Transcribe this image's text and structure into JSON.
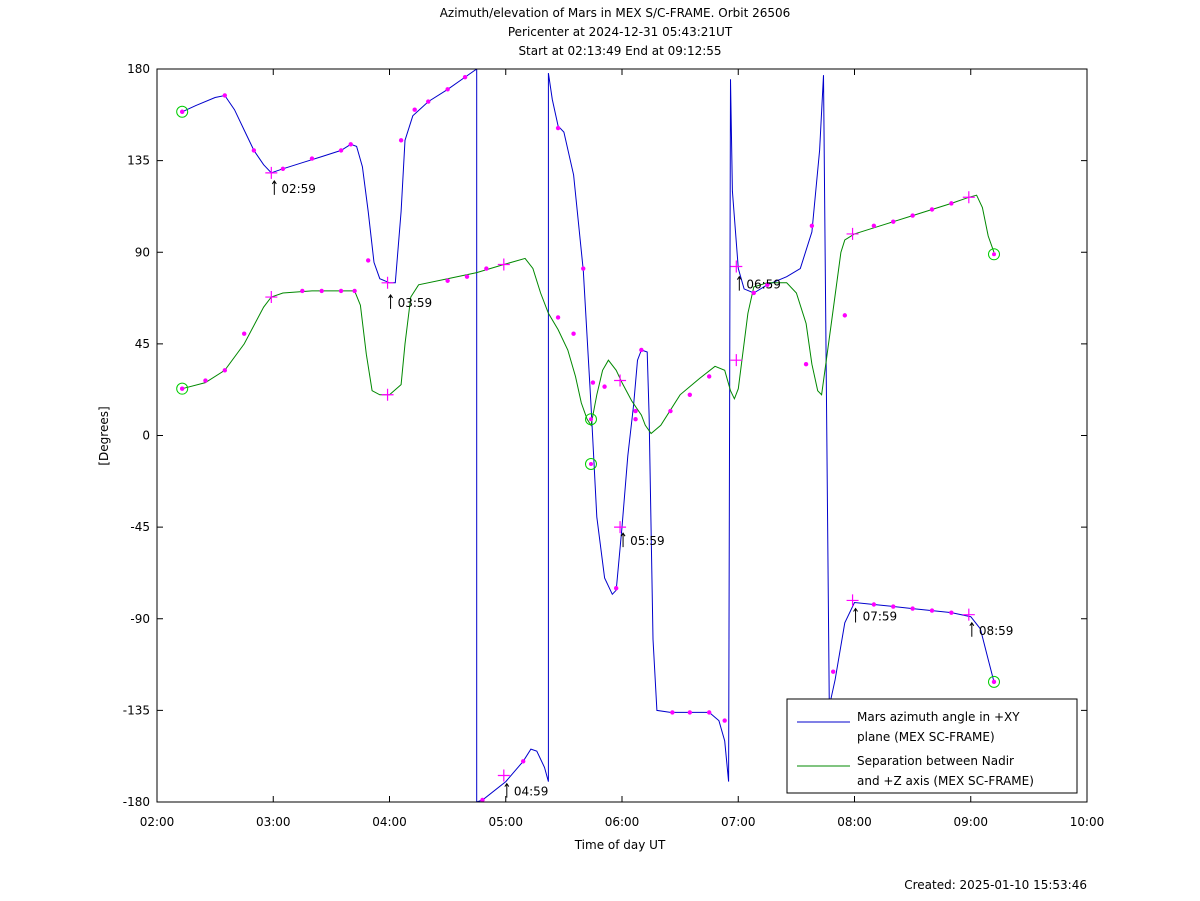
{
  "chart_data": {
    "type": "line",
    "title": "Azimuth/elevation of Mars in MEX S/C-FRAME.  Orbit 26506",
    "subtitle1": "Pericenter at 2024-12-31 05:43:21UT",
    "subtitle2": "Start at 02:13:49 End at 09:12:55",
    "xlabel": "Time of day UT",
    "ylabel": "[Degrees]",
    "footer": "Created: 2025-01-10 15:53:46",
    "xlim": [
      "02:00",
      "10:00"
    ],
    "ylim": [
      -180,
      180
    ],
    "x_ticks": [
      "02:00",
      "03:00",
      "04:00",
      "05:00",
      "06:00",
      "07:00",
      "08:00",
      "09:00",
      "10:00"
    ],
    "y_ticks": [
      "180",
      "135",
      "90",
      "45",
      "0",
      "-45",
      "-90",
      "-135",
      "-180"
    ],
    "legend_position": "bottom-right",
    "annotations": [
      {
        "time": "02:59",
        "value": 127,
        "label": "02:59"
      },
      {
        "time": "03:59",
        "value": 71,
        "label": "03:59"
      },
      {
        "time": "04:59",
        "value": -169,
        "label": "04:59"
      },
      {
        "time": "05:59",
        "value": -46,
        "label": "05:59"
      },
      {
        "time": "06:59",
        "value": 80,
        "label": "06:59"
      },
      {
        "time": "07:59",
        "value": -83,
        "label": "07:59"
      },
      {
        "time": "08:59",
        "value": -90,
        "label": "08:59"
      }
    ],
    "series": [
      {
        "name": "Mars azimuth angle in +XY plane (MEX SC-FRAME)",
        "legend_lines": [
          "Mars azimuth angle in +XY",
          "plane (MEX SC-FRAME)"
        ],
        "color": "#0000cc",
        "points": [
          [
            "02:13",
            159
          ],
          [
            "02:20",
            162
          ],
          [
            "02:30",
            166
          ],
          [
            "02:35",
            167
          ],
          [
            "02:40",
            160
          ],
          [
            "02:45",
            150
          ],
          [
            "02:50",
            140
          ],
          [
            "02:55",
            133
          ],
          [
            "02:59",
            129
          ],
          [
            "03:05",
            131
          ],
          [
            "03:15",
            134
          ],
          [
            "03:25",
            137
          ],
          [
            "03:35",
            140
          ],
          [
            "03:40",
            143
          ],
          [
            "03:43",
            142
          ],
          [
            "03:46",
            132
          ],
          [
            "03:49",
            110
          ],
          [
            "03:52",
            85
          ],
          [
            "03:55",
            77
          ],
          [
            "04:00",
            75
          ],
          [
            "04:03",
            75
          ],
          [
            "04:06",
            110
          ],
          [
            "04:08",
            145
          ],
          [
            "04:12",
            157
          ],
          [
            "04:20",
            164
          ],
          [
            "04:30",
            170
          ],
          [
            "04:39",
            176
          ],
          [
            "04:45",
            180
          ],
          [
            "04:45",
            -180
          ],
          [
            "04:48",
            -179
          ],
          [
            "05:00",
            -170
          ],
          [
            "05:09",
            -160
          ],
          [
            "05:13",
            -154
          ],
          [
            "05:16",
            -155
          ],
          [
            "05:20",
            -163
          ],
          [
            "05:22",
            -170
          ],
          [
            "05:22",
            178
          ],
          [
            "05:24",
            165
          ],
          [
            "05:27",
            152
          ],
          [
            "05:30",
            149
          ],
          [
            "05:35",
            128
          ],
          [
            "05:40",
            81
          ],
          [
            "05:44",
            15
          ],
          [
            "05:47",
            -40
          ],
          [
            "05:51",
            -70
          ],
          [
            "05:55",
            -78
          ],
          [
            "05:57",
            -76
          ],
          [
            "06:00",
            -45
          ],
          [
            "06:03",
            -10
          ],
          [
            "06:06",
            15
          ],
          [
            "06:08",
            37
          ],
          [
            "06:10",
            42
          ],
          [
            "06:13",
            41
          ],
          [
            "06:14",
            10
          ],
          [
            "06:16",
            -100
          ],
          [
            "06:18",
            -135
          ],
          [
            "06:25",
            -136
          ],
          [
            "06:35",
            -136
          ],
          [
            "06:45",
            -136
          ],
          [
            "06:50",
            -140
          ],
          [
            "06:53",
            -150
          ],
          [
            "06:55",
            -170
          ],
          [
            "06:56",
            175
          ],
          [
            "06:57",
            120
          ],
          [
            "07:00",
            82
          ],
          [
            "07:03",
            72
          ],
          [
            "07:08",
            70
          ],
          [
            "07:15",
            74
          ],
          [
            "07:25",
            78
          ],
          [
            "07:32",
            82
          ],
          [
            "07:38",
            100
          ],
          [
            "07:42",
            140
          ],
          [
            "07:44",
            177
          ],
          [
            "07:47",
            -133
          ],
          [
            "07:50",
            -120
          ],
          [
            "07:55",
            -92
          ],
          [
            "08:00",
            -82
          ],
          [
            "08:10",
            -83
          ],
          [
            "08:20",
            -84
          ],
          [
            "08:30",
            -85
          ],
          [
            "08:40",
            -86
          ],
          [
            "08:50",
            -87
          ],
          [
            "09:00",
            -89
          ],
          [
            "09:05",
            -95
          ],
          [
            "09:09",
            -110
          ],
          [
            "09:12",
            -121
          ]
        ],
        "markers": [
          [
            "02:13",
            159
          ],
          [
            "02:35",
            167
          ],
          [
            "02:50",
            140
          ],
          [
            "03:05",
            131
          ],
          [
            "03:20",
            136
          ],
          [
            "03:35",
            140
          ],
          [
            "03:40",
            143
          ],
          [
            "03:49",
            86
          ],
          [
            "04:06",
            145
          ],
          [
            "04:13",
            160
          ],
          [
            "04:20",
            164
          ],
          [
            "04:30",
            170
          ],
          [
            "04:39",
            176
          ],
          [
            "04:48",
            -179
          ],
          [
            "05:09",
            -160
          ],
          [
            "05:27",
            151
          ],
          [
            "05:40",
            82
          ],
          [
            "05:57",
            -75
          ],
          [
            "06:07",
            8
          ],
          [
            "06:10",
            42
          ],
          [
            "06:26",
            -136
          ],
          [
            "06:35",
            -136
          ],
          [
            "06:45",
            -136
          ],
          [
            "06:53",
            -140
          ],
          [
            "07:08",
            70
          ],
          [
            "07:15",
            74
          ],
          [
            "07:38",
            103
          ],
          [
            "07:49",
            -116
          ],
          [
            "08:10",
            -83
          ],
          [
            "08:20",
            -84
          ],
          [
            "08:30",
            -85
          ],
          [
            "08:40",
            -86
          ],
          [
            "08:50",
            -87
          ],
          [
            "09:12",
            -121
          ]
        ]
      },
      {
        "name": "Separation between Nadir and +Z axis (MEX SC-FRAME)",
        "legend_lines": [
          "Separation between Nadir",
          "and +Z axis (MEX SC-FRAME)"
        ],
        "color": "#008800",
        "points": [
          [
            "02:13",
            23
          ],
          [
            "02:25",
            26
          ],
          [
            "02:35",
            32
          ],
          [
            "02:45",
            45
          ],
          [
            "02:55",
            63
          ],
          [
            "02:59",
            68
          ],
          [
            "03:05",
            70
          ],
          [
            "03:20",
            71
          ],
          [
            "03:35",
            71
          ],
          [
            "03:42",
            71
          ],
          [
            "03:45",
            64
          ],
          [
            "03:48",
            40
          ],
          [
            "03:51",
            22
          ],
          [
            "03:55",
            20
          ],
          [
            "04:00",
            20
          ],
          [
            "04:06",
            25
          ],
          [
            "04:08",
            45
          ],
          [
            "04:11",
            68
          ],
          [
            "04:15",
            74
          ],
          [
            "04:30",
            77
          ],
          [
            "04:45",
            80
          ],
          [
            "04:59",
            84
          ],
          [
            "05:10",
            87
          ],
          [
            "05:14",
            82
          ],
          [
            "05:18",
            70
          ],
          [
            "05:22",
            60
          ],
          [
            "05:27",
            52
          ],
          [
            "05:32",
            42
          ],
          [
            "05:36",
            29
          ],
          [
            "05:39",
            16
          ],
          [
            "05:42",
            8
          ],
          [
            "05:44",
            5
          ],
          [
            "05:47",
            20
          ],
          [
            "05:50",
            32
          ],
          [
            "05:53",
            37
          ],
          [
            "05:57",
            32
          ],
          [
            "06:00",
            26
          ],
          [
            "06:05",
            17
          ],
          [
            "06:10",
            10
          ],
          [
            "06:12",
            5
          ],
          [
            "06:15",
            1
          ],
          [
            "06:20",
            5
          ],
          [
            "06:30",
            20
          ],
          [
            "06:40",
            28
          ],
          [
            "06:48",
            34
          ],
          [
            "06:53",
            32
          ],
          [
            "06:56",
            22
          ],
          [
            "06:58",
            18
          ],
          [
            "07:00",
            23
          ],
          [
            "07:05",
            60
          ],
          [
            "07:08",
            73
          ],
          [
            "07:15",
            75
          ],
          [
            "07:25",
            75
          ],
          [
            "07:30",
            70
          ],
          [
            "07:35",
            55
          ],
          [
            "07:38",
            35
          ],
          [
            "07:41",
            22
          ],
          [
            "07:43",
            20
          ],
          [
            "07:48",
            55
          ],
          [
            "07:53",
            90
          ],
          [
            "07:55",
            96
          ],
          [
            "08:00",
            99
          ],
          [
            "08:10",
            102
          ],
          [
            "08:20",
            105
          ],
          [
            "08:30",
            108
          ],
          [
            "08:40",
            111
          ],
          [
            "08:50",
            114
          ],
          [
            "08:59",
            117
          ],
          [
            "09:03",
            118
          ],
          [
            "09:06",
            112
          ],
          [
            "09:09",
            98
          ],
          [
            "09:12",
            90
          ]
        ],
        "markers": [
          [
            "02:13",
            23
          ],
          [
            "02:25",
            27
          ],
          [
            "02:35",
            32
          ],
          [
            "02:45",
            50
          ],
          [
            "03:15",
            71
          ],
          [
            "03:25",
            71
          ],
          [
            "03:35",
            71
          ],
          [
            "03:42",
            71
          ],
          [
            "04:30",
            76
          ],
          [
            "04:40",
            78
          ],
          [
            "04:50",
            82
          ],
          [
            "05:27",
            58
          ],
          [
            "05:35",
            50
          ],
          [
            "05:45",
            26
          ],
          [
            "05:51",
            24
          ],
          [
            "06:07",
            12
          ],
          [
            "06:25",
            12
          ],
          [
            "06:35",
            20
          ],
          [
            "06:45",
            29
          ],
          [
            "07:55",
            59
          ],
          [
            "08:10",
            103
          ],
          [
            "08:20",
            105
          ],
          [
            "08:30",
            108
          ],
          [
            "08:40",
            111
          ],
          [
            "08:50",
            114
          ],
          [
            "07:35",
            35
          ]
        ]
      }
    ],
    "crosses": [
      [
        "02:59",
        129
      ],
      [
        "03:59",
        75
      ],
      [
        "04:59",
        -167
      ],
      [
        "05:59",
        -45
      ],
      [
        "06:59",
        83
      ],
      [
        "07:59",
        -81
      ],
      [
        "08:59",
        -88
      ],
      [
        "02:59",
        68
      ],
      [
        "03:59",
        20
      ],
      [
        "04:59",
        84
      ],
      [
        "05:59",
        27
      ],
      [
        "06:59",
        37
      ],
      [
        "07:59",
        99
      ],
      [
        "08:59",
        117
      ]
    ],
    "circles": [
      [
        "02:13",
        159
      ],
      [
        "09:12",
        -121
      ],
      [
        "02:13",
        23
      ],
      [
        "09:12",
        89
      ],
      [
        "05:44",
        -14
      ],
      [
        "05:44",
        8
      ]
    ]
  }
}
